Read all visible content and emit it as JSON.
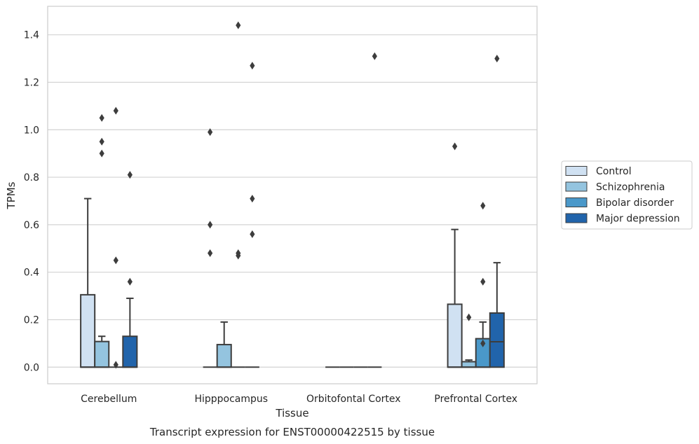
{
  "chart_data": {
    "type": "box",
    "caption": "Transcript expression for ENST00000422515 by tissue",
    "xlabel": "Tissue",
    "ylabel": "TPMs",
    "ylim": [
      -0.07,
      1.52
    ],
    "yticks": [
      0.0,
      0.2,
      0.4,
      0.6,
      0.8,
      1.0,
      1.2,
      1.4
    ],
    "ytick_labels": [
      "0.0",
      "0.2",
      "0.4",
      "0.6",
      "0.8",
      "1.0",
      "1.2",
      "1.4"
    ],
    "grid": "horizontal",
    "legend_placement": "right",
    "categories": [
      "Cerebellum",
      "Hipppocampus",
      "Orbitofontal Cortex",
      "Prefrontal Cortex"
    ],
    "series": [
      {
        "name": "Control",
        "color": "#d0e1f2",
        "boxes": [
          {
            "q1": 0.0,
            "median": 0.0,
            "q3": 0.305,
            "whisker_low": 0.0,
            "whisker_high": 0.71,
            "outliers": []
          },
          {
            "q1": 0.0,
            "median": 0.0,
            "q3": 0.0,
            "whisker_low": 0.0,
            "whisker_high": 0.0,
            "outliers": [
              0.48,
              0.6,
              0.99
            ]
          },
          {
            "q1": 0.0,
            "median": 0.0,
            "q3": 0.0,
            "whisker_low": 0.0,
            "whisker_high": 0.0,
            "outliers": []
          },
          {
            "q1": 0.0,
            "median": 0.0,
            "q3": 0.265,
            "whisker_low": 0.0,
            "whisker_high": 0.58,
            "outliers": [
              0.93
            ]
          }
        ]
      },
      {
        "name": "Schizophrenia",
        "color": "#94c4df",
        "boxes": [
          {
            "q1": 0.0,
            "median": 0.0,
            "q3": 0.108,
            "whisker_low": 0.0,
            "whisker_high": 0.13,
            "outliers": [
              0.9,
              0.95,
              1.05
            ]
          },
          {
            "q1": 0.0,
            "median": 0.0,
            "q3": 0.095,
            "whisker_low": 0.0,
            "whisker_high": 0.19,
            "outliers": []
          },
          {
            "q1": 0.0,
            "median": 0.0,
            "q3": 0.0,
            "whisker_low": 0.0,
            "whisker_high": 0.0,
            "outliers": []
          },
          {
            "q1": 0.0,
            "median": 0.0,
            "q3": 0.023,
            "whisker_low": 0.0,
            "whisker_high": 0.03,
            "outliers": [
              0.21
            ]
          }
        ]
      },
      {
        "name": "Bipolar disorder",
        "color": "#4a98c9",
        "boxes": [
          {
            "q1": 0.0,
            "median": 0.0,
            "q3": 0.0,
            "whisker_low": 0.0,
            "whisker_high": 0.0,
            "outliers": [
              0.01,
              0.45,
              1.08
            ]
          },
          {
            "q1": 0.0,
            "median": 0.0,
            "q3": 0.0,
            "whisker_low": 0.0,
            "whisker_high": 0.0,
            "outliers": [
              0.47,
              0.48,
              1.44
            ]
          },
          {
            "q1": 0.0,
            "median": 0.0,
            "q3": 0.0,
            "whisker_low": 0.0,
            "whisker_high": 0.0,
            "outliers": []
          },
          {
            "q1": 0.0,
            "median": 0.0,
            "q3": 0.12,
            "whisker_low": 0.0,
            "whisker_high": 0.19,
            "outliers": [
              0.1,
              0.36,
              0.68
            ]
          }
        ]
      },
      {
        "name": "Major depression",
        "color": "#2164ab",
        "boxes": [
          {
            "q1": 0.0,
            "median": 0.0,
            "q3": 0.13,
            "whisker_low": 0.0,
            "whisker_high": 0.29,
            "outliers": [
              0.36,
              0.81
            ]
          },
          {
            "q1": 0.0,
            "median": 0.0,
            "q3": 0.0,
            "whisker_low": 0.0,
            "whisker_high": 0.0,
            "outliers": [
              0.56,
              0.71,
              1.27
            ]
          },
          {
            "q1": 0.0,
            "median": 0.0,
            "q3": 0.0,
            "whisker_low": 0.0,
            "whisker_high": 0.0,
            "outliers": [
              1.31
            ]
          },
          {
            "q1": 0.0,
            "median": 0.107,
            "q3": 0.228,
            "whisker_low": 0.0,
            "whisker_high": 0.44,
            "outliers": [
              1.3
            ]
          }
        ]
      }
    ]
  }
}
